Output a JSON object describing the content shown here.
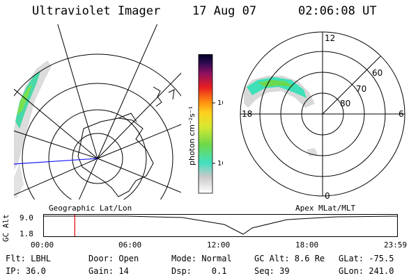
{
  "header": {
    "title": "Ultraviolet Imager",
    "date": "17 Aug 07",
    "time": "02:06:08 UT"
  },
  "left_panel": {
    "caption": "Geographic Lat/Lon"
  },
  "right_panel": {
    "caption": "Apex MLat/MLT",
    "mlt_labels": {
      "top": "12",
      "bottom": "0",
      "left": "18",
      "right": "6"
    },
    "lat_labels": [
      "60",
      "70",
      "80"
    ]
  },
  "colorbar": {
    "label": "photon cm⁻²s⁻¹",
    "ticks": [
      "100",
      "10"
    ]
  },
  "timeline": {
    "ylabel": "GC Alt",
    "ticks": [
      "9.0",
      "1.8"
    ],
    "xticks": [
      "00:00",
      "06:00",
      "12:00",
      "18:00",
      "23:59"
    ],
    "marker_hours": 2.1
  },
  "info": {
    "flt": "Flt: LBHL",
    "door": "Door: Open",
    "mode": "Mode: Normal",
    "gcalt": "GC Alt: 8.6 Re",
    "glat": "GLat: -75.5",
    "ip": "IP: 36.0",
    "gain": "Gain: 14",
    "dsp": "Dsp:    0.1",
    "seq": "Seq: 39",
    "glon": "GLon: 241.0"
  }
}
